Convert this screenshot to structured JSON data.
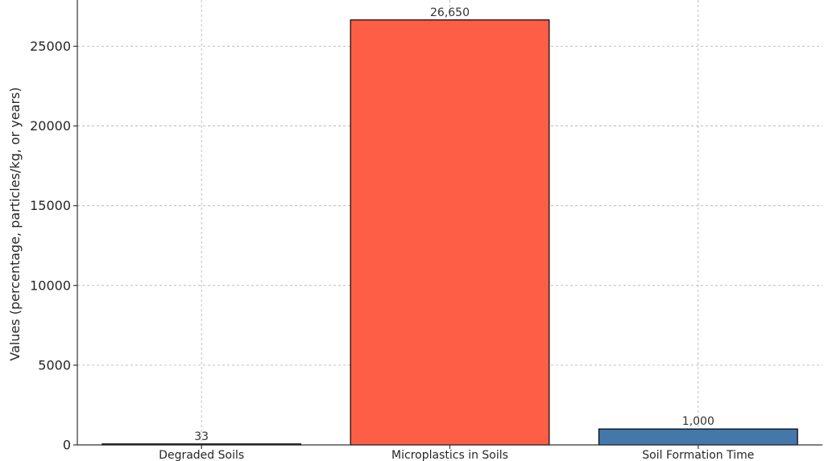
{
  "chart_data": {
    "type": "bar",
    "title": "",
    "xlabel": "",
    "ylabel": "Values (percentage, particles/kg, or years)",
    "categories": [
      "Degraded Soils",
      "Microplastics in Soils",
      "Soil Formation Time"
    ],
    "values": [
      33,
      26650,
      1000
    ],
    "data_labels": [
      "33",
      "26,650",
      "1,000"
    ],
    "colors": [
      "#4a90c8",
      "#ff5e46",
      "#4477aa"
    ],
    "yticks": [
      0,
      5000,
      10000,
      15000,
      20000,
      25000
    ],
    "ytick_labels": [
      "0",
      "5000",
      "10000",
      "15000",
      "20000",
      "25000"
    ],
    "ylim": [
      0,
      27900
    ],
    "grid": true
  }
}
